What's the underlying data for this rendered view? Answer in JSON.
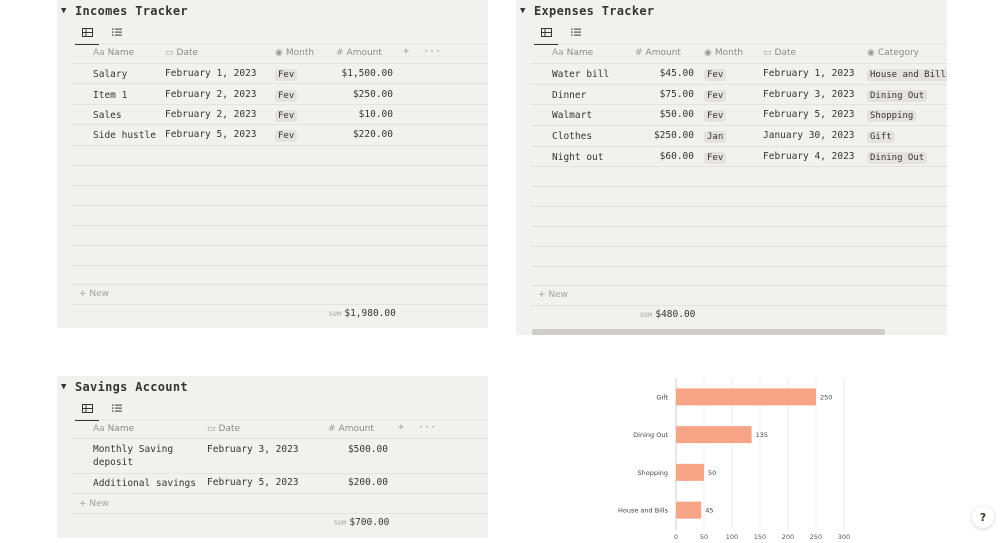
{
  "incomes": {
    "title": "Incomes Tracker",
    "toggle": "▼",
    "columns": {
      "name": "Name",
      "date": "Date",
      "month": "Month",
      "amount": "Amount"
    },
    "rows": [
      {
        "name": "Salary",
        "date": "February 1, 2023",
        "month": "Fev",
        "amount": "$1,500.00"
      },
      {
        "name": "Item 1",
        "date": "February 2, 2023",
        "month": "Fev",
        "amount": "$250.00"
      },
      {
        "name": "Sales",
        "date": "February 2, 2023",
        "month": "Fev",
        "amount": "$10.00"
      },
      {
        "name": "Side hustle",
        "date": "February 5, 2023",
        "month": "Fev",
        "amount": "$220.00"
      }
    ],
    "new_label": "New",
    "sum_label": "SUM",
    "sum_value": "$1,980.00"
  },
  "expenses": {
    "title": "Expenses Tracker",
    "toggle": "▼",
    "columns": {
      "name": "Name",
      "amount": "Amount",
      "month": "Month",
      "date": "Date",
      "category": "Category"
    },
    "rows": [
      {
        "name": "Water bill",
        "amount": "$45.00",
        "month": "Fev",
        "date": "February 1, 2023",
        "category": "House and Bills"
      },
      {
        "name": "Dinner",
        "amount": "$75.00",
        "month": "Fev",
        "date": "February 3, 2023",
        "category": "Dining Out"
      },
      {
        "name": "Walmart",
        "amount": "$50.00",
        "month": "Fev",
        "date": "February 5, 2023",
        "category": "Shopping"
      },
      {
        "name": "Clothes",
        "amount": "$250.00",
        "month": "Jan",
        "date": "January 30, 2023",
        "category": "Gift"
      },
      {
        "name": "Night out",
        "amount": "$60.00",
        "month": "Fev",
        "date": "February 4, 2023",
        "category": "Dining Out"
      }
    ],
    "new_label": "New",
    "sum_label": "SUM",
    "sum_value": "$480.00"
  },
  "savings": {
    "title": "Savings Account",
    "toggle": "▼",
    "columns": {
      "name": "Name",
      "date": "Date",
      "amount": "Amount"
    },
    "rows": [
      {
        "name_line1": "Monthly Saving",
        "name_line2": "deposit",
        "date": "February 3, 2023",
        "amount": "$500.00"
      },
      {
        "name_line1": "Additional savings",
        "name_line2": "",
        "date": "February 5, 2023",
        "amount": "$200.00"
      }
    ],
    "new_label": "New",
    "sum_label": "SUM",
    "sum_value": "$700.00"
  },
  "chart_data": {
    "type": "bar",
    "orientation": "horizontal",
    "categories": [
      "Gift",
      "Dining Out",
      "Shopping",
      "House and Bills"
    ],
    "values": [
      250,
      135,
      50,
      45
    ],
    "xlim": [
      0,
      300
    ],
    "xticks": [
      0,
      50,
      100,
      150,
      200,
      250,
      300
    ],
    "title": "",
    "xlabel": "",
    "ylabel": "",
    "bar_color": "#f8a486"
  },
  "help": {
    "label": "?"
  }
}
